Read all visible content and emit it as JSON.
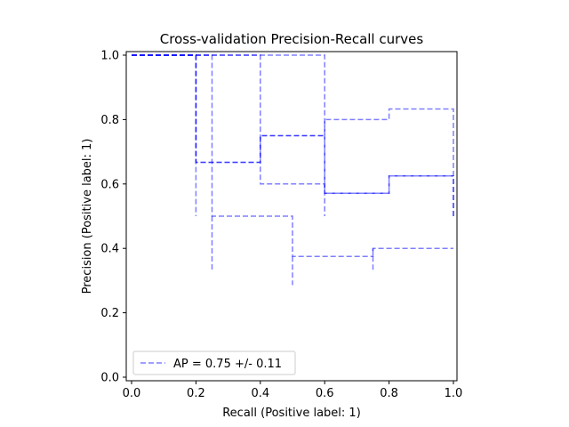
{
  "chart_data": {
    "type": "line",
    "title": "Cross-validation Precision-Recall curves",
    "xlabel": "Recall (Positive label: 1)",
    "ylabel": "Precision (Positive label: 1)",
    "xlim": [
      0,
      1
    ],
    "ylim": [
      0,
      1
    ],
    "xticks": [
      "0.0",
      "0.2",
      "0.4",
      "0.6",
      "0.8",
      "1.0"
    ],
    "yticks": [
      "0.0",
      "0.2",
      "0.4",
      "0.6",
      "0.8",
      "1.0"
    ],
    "grid": false,
    "legend": {
      "position": "lower-left",
      "label": "AP = 0.75 +/- 0.11"
    },
    "line_color": "#0000ff",
    "line_style": "dashed",
    "series": [
      {
        "points": [
          [
            0,
            1
          ],
          [
            0.2,
            1
          ],
          [
            0.2,
            0.5
          ]
        ]
      },
      {
        "points": [
          [
            0,
            1
          ],
          [
            0.2,
            1
          ],
          [
            0.2,
            0.667
          ],
          [
            0.4,
            0.667
          ],
          [
            0.4,
            0.75
          ],
          [
            0.6,
            0.75
          ],
          [
            0.6,
            0.8
          ],
          [
            0.8,
            0.8
          ],
          [
            0.8,
            0.833
          ],
          [
            1,
            0.833
          ],
          [
            1,
            0.5
          ]
        ]
      },
      {
        "points": [
          [
            0,
            1
          ],
          [
            0.4,
            1
          ],
          [
            0.4,
            0.6
          ],
          [
            0.6,
            0.6
          ],
          [
            0.6,
            0.571
          ],
          [
            0.8,
            0.571
          ],
          [
            0.8,
            0.625
          ],
          [
            1,
            0.625
          ],
          [
            1,
            0.5
          ]
        ]
      },
      {
        "points": [
          [
            0,
            1
          ],
          [
            0.6,
            1
          ],
          [
            0.6,
            0.5
          ]
        ]
      },
      {
        "points": [
          [
            0,
            1
          ],
          [
            0.25,
            1
          ],
          [
            0.25,
            0.5
          ],
          [
            0.5,
            0.5
          ],
          [
            0.5,
            0.375
          ],
          [
            0.75,
            0.375
          ],
          [
            0.75,
            0.4
          ],
          [
            1,
            0.4
          ]
        ]
      },
      {
        "points": [
          [
            0.25,
            0.5
          ],
          [
            0.25,
            0.333
          ]
        ]
      },
      {
        "points": [
          [
            0.5,
            0.375
          ],
          [
            0.5,
            0.286
          ]
        ]
      },
      {
        "points": [
          [
            0.75,
            0.4
          ],
          [
            0.75,
            0.333
          ]
        ]
      },
      {
        "points": [
          [
            0,
            1
          ],
          [
            0.2,
            1
          ],
          [
            0.2,
            0.667
          ],
          [
            0.4,
            0.667
          ],
          [
            0.4,
            0.75
          ],
          [
            0.6,
            0.75
          ],
          [
            0.6,
            0.571
          ],
          [
            0.8,
            0.571
          ],
          [
            0.8,
            0.625
          ],
          [
            1,
            0.625
          ]
        ]
      }
    ]
  }
}
